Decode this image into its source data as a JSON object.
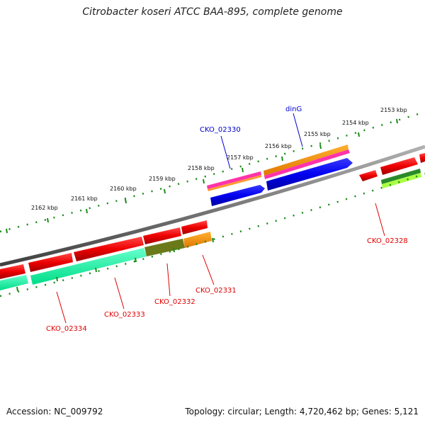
{
  "title": "Citrobacter koseri ATCC BAA-895, complete genome",
  "accession": "Accession: NC_009792",
  "summary": "Topology: circular; Length: 4,720,462 bp; Genes: 5,121",
  "ticks": [
    "2153 kbp",
    "2154 kbp",
    "2155 kbp",
    "2156 kbp",
    "2157 kbp",
    "2158 kbp",
    "2159 kbp",
    "2160 kbp",
    "2161 kbp",
    "2162 kbp"
  ],
  "genes": {
    "cko_02330": "CKO_02330",
    "ding": "dinG",
    "cko_02328": "CKO_02328",
    "cko_02331": "CKO_02331",
    "cko_02332": "CKO_02332",
    "cko_02333": "CKO_02333",
    "cko_02334": "CKO_02334"
  },
  "colors": {
    "forward_cds": "#0000ff",
    "reverse_cds": "#ee0000",
    "backbone": "#808080",
    "tick_dots": "#1a8a1a",
    "label_red": "#e00000",
    "label_blue": "#0000cc"
  }
}
